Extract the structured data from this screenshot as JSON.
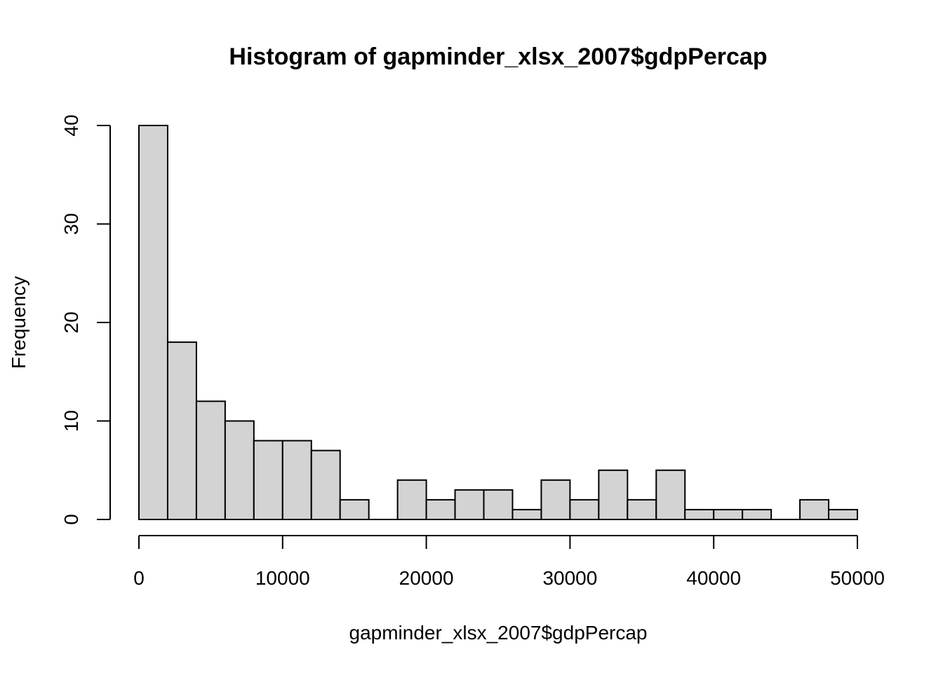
{
  "chart_data": {
    "type": "bar",
    "title": "Histogram of gapminder_xlsx_2007$gdpPercap",
    "xlabel": "gapminder_xlsx_2007$gdpPercap",
    "ylabel": "Frequency",
    "bin_width": 2000,
    "bins": [
      {
        "x0": 0,
        "x1": 2000,
        "count": 40
      },
      {
        "x0": 2000,
        "x1": 4000,
        "count": 18
      },
      {
        "x0": 4000,
        "x1": 6000,
        "count": 12
      },
      {
        "x0": 6000,
        "x1": 8000,
        "count": 10
      },
      {
        "x0": 8000,
        "x1": 10000,
        "count": 8
      },
      {
        "x0": 10000,
        "x1": 12000,
        "count": 8
      },
      {
        "x0": 12000,
        "x1": 14000,
        "count": 7
      },
      {
        "x0": 14000,
        "x1": 16000,
        "count": 2
      },
      {
        "x0": 16000,
        "x1": 18000,
        "count": 0
      },
      {
        "x0": 18000,
        "x1": 20000,
        "count": 4
      },
      {
        "x0": 20000,
        "x1": 22000,
        "count": 2
      },
      {
        "x0": 22000,
        "x1": 24000,
        "count": 3
      },
      {
        "x0": 24000,
        "x1": 26000,
        "count": 3
      },
      {
        "x0": 26000,
        "x1": 28000,
        "count": 1
      },
      {
        "x0": 28000,
        "x1": 30000,
        "count": 4
      },
      {
        "x0": 30000,
        "x1": 32000,
        "count": 2
      },
      {
        "x0": 32000,
        "x1": 34000,
        "count": 5
      },
      {
        "x0": 34000,
        "x1": 36000,
        "count": 2
      },
      {
        "x0": 36000,
        "x1": 38000,
        "count": 5
      },
      {
        "x0": 38000,
        "x1": 40000,
        "count": 1
      },
      {
        "x0": 40000,
        "x1": 42000,
        "count": 1
      },
      {
        "x0": 42000,
        "x1": 44000,
        "count": 1
      },
      {
        "x0": 44000,
        "x1": 46000,
        "count": 0
      },
      {
        "x0": 46000,
        "x1": 48000,
        "count": 2
      },
      {
        "x0": 48000,
        "x1": 50000,
        "count": 1
      }
    ],
    "xlim": [
      0,
      50000
    ],
    "ylim": [
      0,
      40
    ],
    "x_ticks": [
      0,
      10000,
      20000,
      30000,
      40000,
      50000
    ],
    "y_ticks": [
      0,
      10,
      20,
      30,
      40
    ],
    "bar_color": "#d3d3d3",
    "grid": false,
    "legend": "none"
  }
}
